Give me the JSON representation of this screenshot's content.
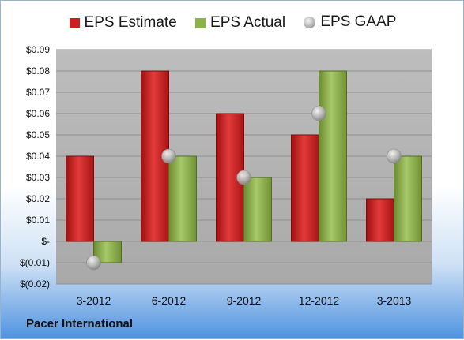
{
  "legend": {
    "estimate": "EPS Estimate",
    "actual": "EPS Actual",
    "gaap": "EPS GAAP"
  },
  "footer": "Pacer International",
  "colors": {
    "estimate": "#cc1f1f",
    "actual": "#8cb34a",
    "gaap": "#a8a8a8",
    "plot_bg": "#b8b8b8"
  },
  "chart_data": {
    "type": "bar",
    "categories": [
      "3-2012",
      "6-2012",
      "9-2012",
      "12-2012",
      "3-2013"
    ],
    "series": [
      {
        "name": "EPS Estimate",
        "values": [
          0.04,
          0.08,
          0.06,
          0.05,
          0.02
        ]
      },
      {
        "name": "EPS Actual",
        "values": [
          -0.01,
          0.04,
          0.03,
          0.08,
          0.04
        ]
      },
      {
        "name": "EPS GAAP",
        "values": [
          -0.01,
          0.04,
          0.03,
          0.06,
          0.04
        ],
        "marker": "circle"
      }
    ],
    "yticks": [
      {
        "value": 0.09,
        "label": "$0.09"
      },
      {
        "value": 0.08,
        "label": "$0.08"
      },
      {
        "value": 0.07,
        "label": "$0.07"
      },
      {
        "value": 0.06,
        "label": "$0.06"
      },
      {
        "value": 0.05,
        "label": "$0.05"
      },
      {
        "value": 0.04,
        "label": "$0.04"
      },
      {
        "value": 0.03,
        "label": "$0.03"
      },
      {
        "value": 0.02,
        "label": "$0.02"
      },
      {
        "value": 0.01,
        "label": "$0.01"
      },
      {
        "value": 0.0,
        "label": "$-"
      },
      {
        "value": -0.01,
        "label": "$(0.01)"
      },
      {
        "value": -0.02,
        "label": "$(0.02)"
      }
    ],
    "ylim": [
      -0.02,
      0.09
    ],
    "grid": true,
    "legend_position": "top"
  }
}
